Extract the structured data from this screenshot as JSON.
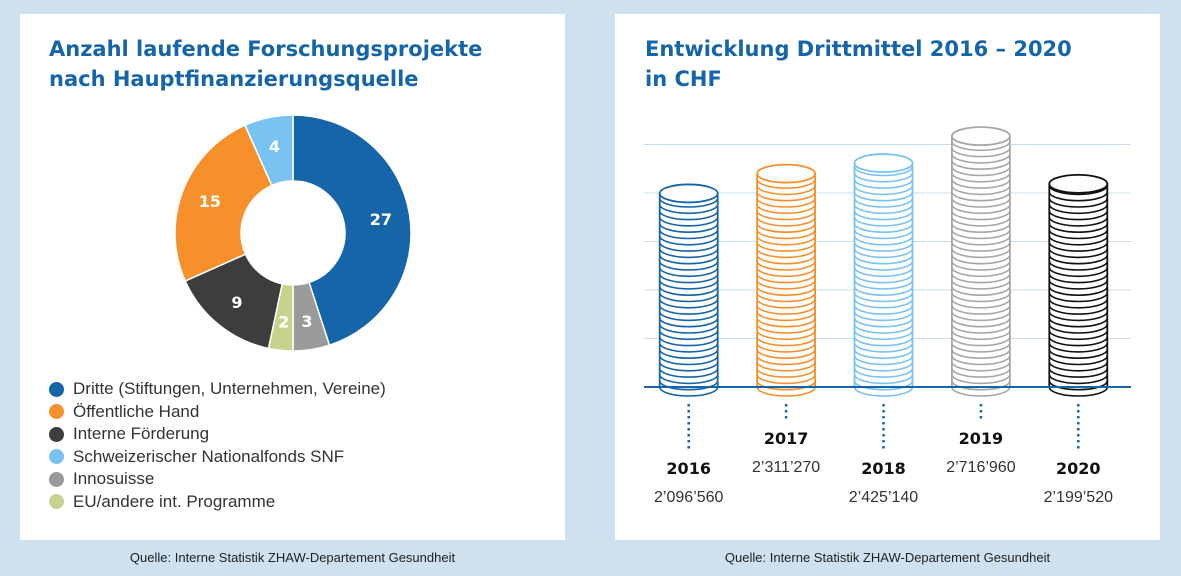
{
  "left_panel": {
    "title_line1": "Anzahl laufende Forschungsprojekte",
    "title_line2": "nach Hauptfinanzierungsquelle",
    "source": "Quelle: Interne Statistik ZHAW-Departement Gesundheit"
  },
  "right_panel": {
    "title_line1": "Entwicklung Drittmittel 2016 – 2020",
    "title_line2": "in CHF",
    "source": "Quelle: Interne Statistik ZHAW-Departement Gesundheit"
  },
  "chart_data": [
    {
      "type": "pie",
      "variant": "donut",
      "title": "Anzahl laufende Forschungsprojekte nach Hauptfinanzierungsquelle",
      "slices": [
        {
          "label": "Dritte (Stiftungen, Unternehmen, Vereine)",
          "value": 27,
          "color": "#1565a8"
        },
        {
          "label": "Innosuisse",
          "value": 3,
          "color": "#9a9a9a"
        },
        {
          "label": "EU/andere int. Programme",
          "value": 2,
          "color": "#c5d38c"
        },
        {
          "label": "Interne Förderung",
          "value": 9,
          "color": "#3d3d3d"
        },
        {
          "label": "Öffentliche Hand",
          "value": 15,
          "color": "#f7902b"
        },
        {
          "label": "Schweizerischer Nationalfonds SNF",
          "value": 4,
          "color": "#78c3f2"
        }
      ],
      "legend": [
        {
          "label": "Dritte (Stiftungen, Unternehmen, Vereine)",
          "color": "#1565a8"
        },
        {
          "label": "Öffentliche Hand",
          "color": "#f7902b"
        },
        {
          "label": "Interne Förderung",
          "color": "#3d3d3d"
        },
        {
          "label": "Schweizerischer Nationalfonds SNF",
          "color": "#78c3f2"
        },
        {
          "label": "Innosuisse",
          "color": "#9a9a9a"
        },
        {
          "label": "EU/andere int. Programme",
          "color": "#c5d38c"
        }
      ],
      "legend_placement": "bottom-left"
    },
    {
      "type": "bar",
      "variant": "coin-stacks",
      "title": "Entwicklung Drittmittel 2016 – 2020 in CHF",
      "categories": [
        "2016",
        "2017",
        "2018",
        "2019",
        "2020"
      ],
      "values": [
        2096560,
        2311270,
        2425140,
        2716960,
        2199520
      ],
      "value_labels": [
        "2’096’560",
        "2’311’270",
        "2’425’140",
        "2’716’960",
        "2’199’520"
      ],
      "colors": [
        "#1565a8",
        "#f7902b",
        "#78c3f2",
        "#a6a6a6",
        "#111111"
      ],
      "grid": true,
      "ylim": [
        0,
        3000000
      ]
    }
  ]
}
